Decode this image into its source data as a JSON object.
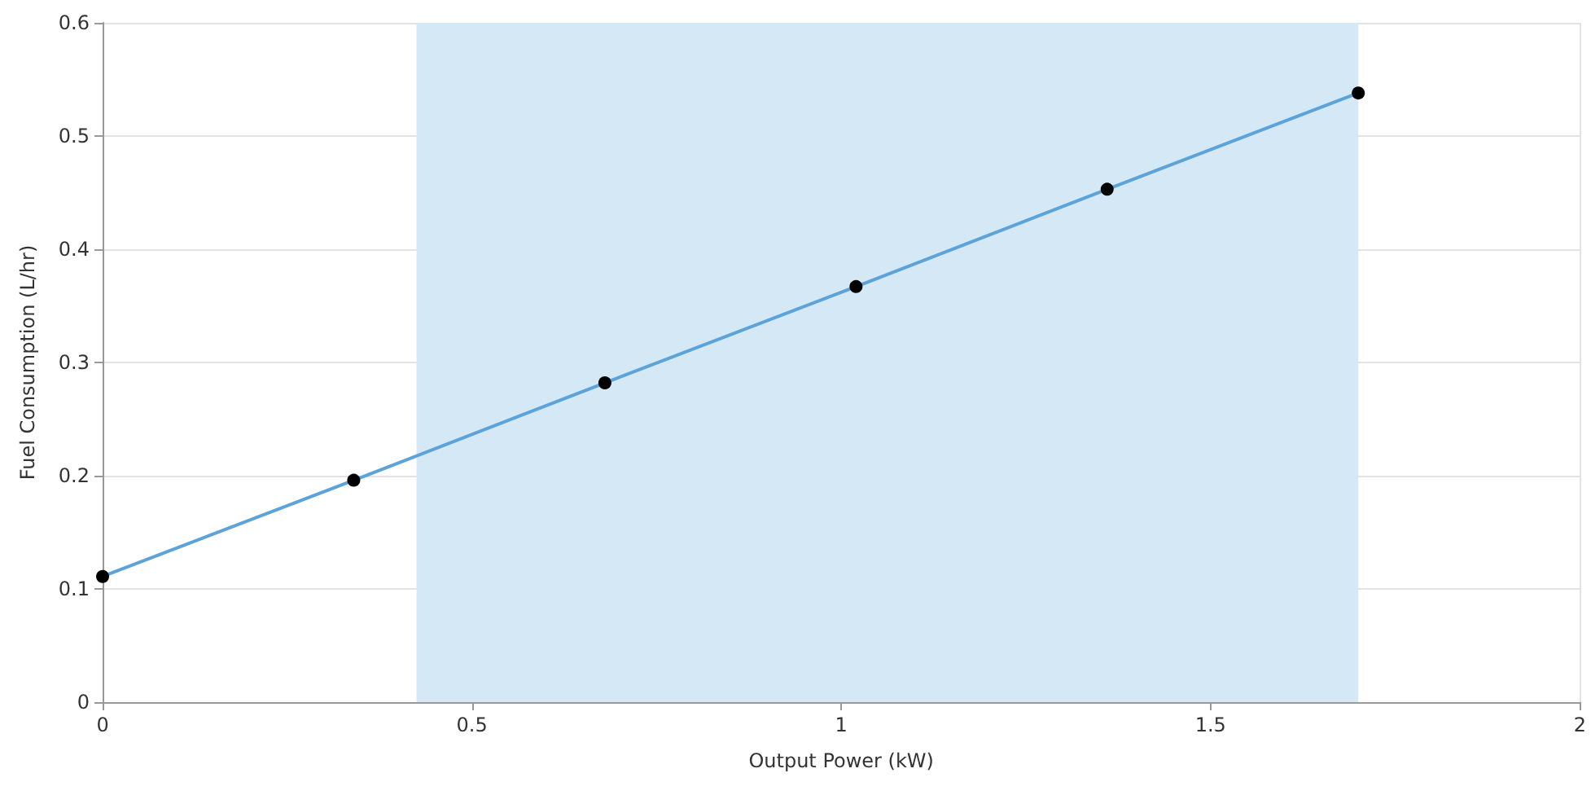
{
  "chart_data": {
    "type": "line",
    "xlabel": "Output Power (kW)",
    "ylabel": "Fuel Consumption (L/hr)",
    "x": [
      0,
      0.34,
      0.68,
      1.02,
      1.36,
      1.7
    ],
    "series": [
      {
        "color": "#5ba3d9",
        "values": [
          0.111,
          0.196,
          0.282,
          0.367,
          0.453,
          0.538
        ]
      }
    ],
    "xlim": [
      0,
      2
    ],
    "xticks": [
      0,
      0.5,
      1,
      1.5,
      2
    ],
    "ylim": [
      0,
      0.6
    ],
    "yticks": [
      0,
      0.1,
      0.2,
      0.3,
      0.4,
      0.5,
      0.6
    ],
    "bands": [
      {
        "axis": "x",
        "from": 0.425,
        "to": 1.7,
        "color": "#d5e8f6"
      }
    ],
    "grid": true,
    "marker": "circle",
    "line_style": "solid"
  }
}
